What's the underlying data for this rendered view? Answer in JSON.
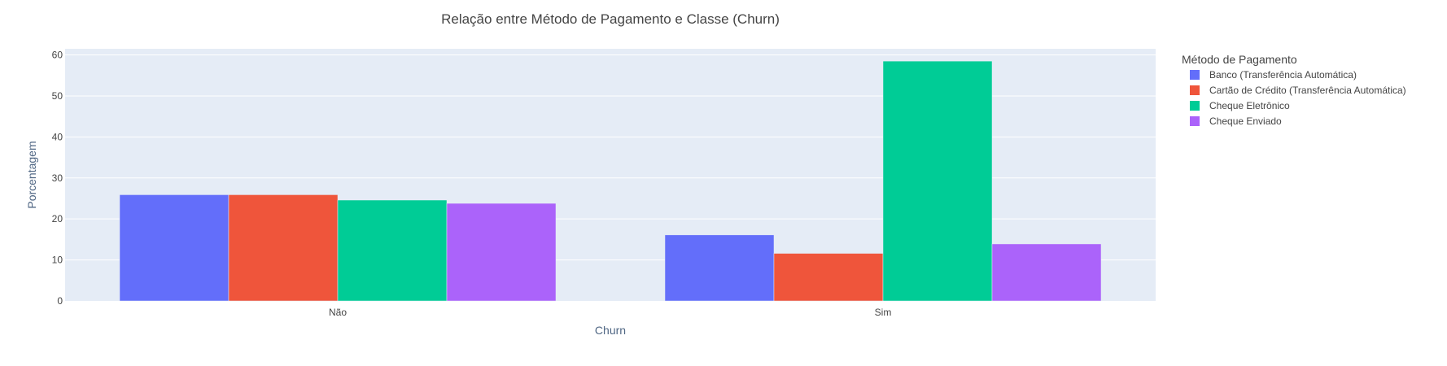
{
  "chart_data": {
    "type": "bar",
    "title": "Relação entre Método de Pagamento e Classe (Churn)",
    "xlabel": "Churn",
    "ylabel": "Porcentagem",
    "categories": [
      "Não",
      "Sim"
    ],
    "ylim": [
      0,
      61.5
    ],
    "yticks": [
      0,
      10,
      20,
      30,
      40,
      50,
      60
    ],
    "grid": true,
    "legend_title": "Método de Pagamento",
    "legend_position": "right",
    "series": [
      {
        "name": "Banco (Transferência Automática)",
        "color": "#636efa",
        "values": [
          25.9,
          16.1
        ]
      },
      {
        "name": "Cartão de Crédito (Transferência Automática)",
        "color": "#ef553b",
        "values": [
          25.9,
          11.6
        ]
      },
      {
        "name": "Cheque Eletrônico",
        "color": "#00cc96",
        "values": [
          24.6,
          58.5
        ]
      },
      {
        "name": "Cheque Enviado",
        "color": "#ab63fa",
        "values": [
          23.8,
          13.9
        ]
      }
    ]
  }
}
